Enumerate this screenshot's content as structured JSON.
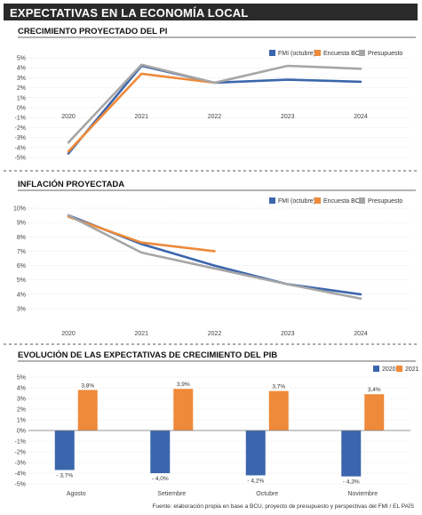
{
  "header": {
    "title": "EXPECTATIVAS EN LA ECONOMÍA LOCAL"
  },
  "source": "Fuente: elaboración propia en base a BCU, proyecto de presupuesto y perspectivas del FMI / EL PAÍS",
  "colors": {
    "blue": "#3b66ad",
    "orange": "#ee8a3a",
    "gray": "#a6a6a6",
    "grid": "#cfcfcf",
    "axis": "#777777"
  },
  "chart_data": [
    {
      "type": "line",
      "title": "CRECIMIENTO PROYECTADO DEL PI",
      "x": [
        "2020",
        "2021",
        "2022",
        "2023",
        "2024"
      ],
      "y_ticks": [
        "5%",
        "4%",
        "3%",
        "2%",
        "1%",
        "0%",
        "-1%",
        "-2%",
        "-3%",
        "-4%",
        "-5%"
      ],
      "ylim": [
        -5,
        5
      ],
      "legend_position": "top-right",
      "series": [
        {
          "name": "FMI (octubre)",
          "color": "#3b66ad",
          "values": [
            -4.6,
            4.2,
            2.5,
            2.8,
            2.6
          ]
        },
        {
          "name": "Encuesta BCU",
          "color": "#ee8a3a",
          "values": [
            -4.4,
            3.4,
            2.5,
            null,
            null
          ]
        },
        {
          "name": "Presupuesto",
          "color": "#a6a6a6",
          "values": [
            -3.5,
            4.3,
            2.5,
            4.2,
            3.9
          ]
        }
      ]
    },
    {
      "type": "line",
      "title": "INFLACIÓN PROYECTADA",
      "x": [
        "2020",
        "2021",
        "2022",
        "2023",
        "2024"
      ],
      "y_ticks": [
        "10%",
        "9%",
        "8%",
        "7%",
        "6%",
        "5%",
        "4%",
        "3%"
      ],
      "ylim": [
        3,
        10
      ],
      "legend_position": "top-right",
      "series": [
        {
          "name": "FMI (octubre)",
          "color": "#3b66ad",
          "values": [
            9.5,
            7.5,
            6.0,
            4.7,
            4.0
          ]
        },
        {
          "name": "Encuesta BCU",
          "color": "#ee8a3a",
          "values": [
            9.4,
            7.6,
            7.0,
            null,
            null
          ]
        },
        {
          "name": "Presupuesto",
          "color": "#a6a6a6",
          "values": [
            9.5,
            6.9,
            5.8,
            4.7,
            3.7
          ]
        }
      ]
    },
    {
      "type": "bar",
      "title": "EVOLUCIÓN DE LAS EXPECTATIVAS DE CRECIMIENTO DEL PIB",
      "categories": [
        "Agosto",
        "Setiembre",
        "Octubre",
        "Noviembre"
      ],
      "y_ticks": [
        "5%",
        "4%",
        "3%",
        "2%",
        "1%",
        "0%",
        "-1%",
        "-2%",
        "-3%",
        "-4%",
        "-5%"
      ],
      "ylim": [
        -5,
        5
      ],
      "legend_position": "top-right",
      "series": [
        {
          "name": "2020",
          "color": "#3b66ad",
          "values": [
            -3.7,
            -4.0,
            -4.2,
            -4.3
          ],
          "labels": [
            "- 3,7%",
            "- 4,0%",
            "- 4,2%",
            "- 4,3%"
          ]
        },
        {
          "name": "2021",
          "color": "#ee8a3a",
          "values": [
            3.8,
            3.9,
            3.7,
            3.4
          ],
          "labels": [
            "3,8%",
            "3,9%",
            "3,7%",
            "3,4%"
          ]
        }
      ]
    }
  ]
}
